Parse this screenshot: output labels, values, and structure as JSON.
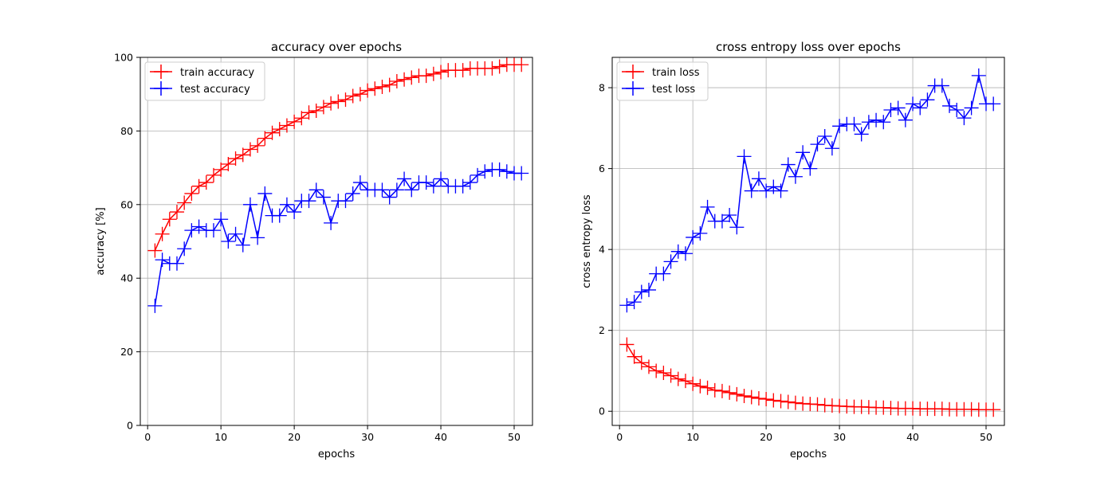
{
  "chart_data": [
    {
      "type": "line",
      "title": "accuracy over epochs",
      "xlabel": "epochs",
      "ylabel": "accuracy [%]",
      "xlim": [
        -1,
        52.5
      ],
      "ylim": [
        0,
        100
      ],
      "xticks": [
        0,
        10,
        20,
        30,
        40,
        50
      ],
      "yticks": [
        0,
        20,
        40,
        60,
        80,
        100
      ],
      "grid": true,
      "legend": "top-left",
      "x": [
        1,
        2,
        3,
        4,
        5,
        6,
        7,
        8,
        9,
        10,
        11,
        12,
        13,
        14,
        15,
        16,
        17,
        18,
        19,
        20,
        21,
        22,
        23,
        24,
        25,
        26,
        27,
        28,
        29,
        30,
        31,
        32,
        33,
        34,
        35,
        36,
        37,
        38,
        39,
        40,
        41,
        42,
        43,
        44,
        45,
        46,
        47,
        48,
        49,
        50,
        51
      ],
      "series": [
        {
          "name": "train accuracy",
          "color": "#ff0000",
          "values": [
            47.5,
            52.0,
            56.0,
            58.0,
            60.5,
            63.0,
            65.0,
            66.0,
            68.0,
            69.5,
            71.0,
            72.5,
            73.5,
            75.0,
            76.0,
            78.0,
            79.5,
            80.5,
            81.5,
            82.5,
            83.5,
            85.0,
            85.5,
            86.5,
            87.5,
            88.0,
            88.5,
            89.5,
            90.0,
            91.0,
            91.5,
            92.0,
            92.5,
            93.5,
            94.0,
            94.5,
            95.0,
            95.0,
            95.5,
            96.0,
            96.5,
            96.5,
            96.5,
            97.0,
            97.0,
            97.0,
            97.0,
            97.5,
            98.0,
            98.0,
            98.0
          ]
        },
        {
          "name": "test accuracy",
          "color": "#0000ff",
          "values": [
            32.5,
            45.0,
            44.0,
            44.0,
            48.0,
            53.0,
            54.0,
            53.0,
            53.0,
            56.0,
            50.0,
            52.0,
            49.0,
            60.0,
            51.0,
            63.0,
            57.0,
            57.0,
            60.0,
            58.0,
            61.0,
            61.0,
            64.0,
            62.0,
            55.0,
            61.0,
            61.0,
            63.0,
            66.0,
            64.0,
            64.0,
            64.0,
            62.0,
            64.0,
            67.0,
            64.0,
            66.0,
            66.0,
            65.0,
            67.0,
            65.0,
            65.0,
            65.0,
            66.0,
            68.0,
            69.0,
            69.5,
            69.5,
            69.0,
            68.5,
            68.5
          ]
        }
      ]
    },
    {
      "type": "line",
      "title": "cross entropy loss over epochs",
      "xlabel": "epochs",
      "ylabel": "cross entropy loss",
      "xlim": [
        -1,
        52.5
      ],
      "ylim": [
        -0.35,
        8.75
      ],
      "xticks": [
        0,
        10,
        20,
        30,
        40,
        50
      ],
      "yticks": [
        0,
        2,
        4,
        6,
        8
      ],
      "grid": true,
      "legend": "top-left",
      "x": [
        1,
        2,
        3,
        4,
        5,
        6,
        7,
        8,
        9,
        10,
        11,
        12,
        13,
        14,
        15,
        16,
        17,
        18,
        19,
        20,
        21,
        22,
        23,
        24,
        25,
        26,
        27,
        28,
        29,
        30,
        31,
        32,
        33,
        34,
        35,
        36,
        37,
        38,
        39,
        40,
        41,
        42,
        43,
        44,
        45,
        46,
        47,
        48,
        49,
        50,
        51
      ],
      "series": [
        {
          "name": "train loss",
          "color": "#ff0000",
          "values": [
            1.65,
            1.35,
            1.2,
            1.1,
            1.0,
            0.95,
            0.88,
            0.8,
            0.75,
            0.68,
            0.62,
            0.58,
            0.52,
            0.5,
            0.46,
            0.42,
            0.38,
            0.35,
            0.32,
            0.3,
            0.27,
            0.25,
            0.23,
            0.21,
            0.19,
            0.18,
            0.17,
            0.15,
            0.14,
            0.13,
            0.12,
            0.11,
            0.11,
            0.1,
            0.09,
            0.09,
            0.08,
            0.07,
            0.07,
            0.07,
            0.06,
            0.06,
            0.06,
            0.06,
            0.05,
            0.05,
            0.05,
            0.05,
            0.04,
            0.04,
            0.04
          ]
        },
        {
          "name": "test loss",
          "color": "#0000ff",
          "values": [
            2.62,
            2.7,
            2.95,
            3.0,
            3.4,
            3.4,
            3.7,
            3.95,
            3.9,
            4.3,
            4.4,
            5.05,
            4.7,
            4.7,
            4.85,
            4.55,
            6.3,
            5.45,
            5.75,
            5.45,
            5.55,
            5.45,
            6.1,
            5.8,
            6.4,
            6.0,
            6.6,
            6.8,
            6.5,
            7.05,
            7.1,
            7.1,
            6.85,
            7.15,
            7.2,
            7.15,
            7.45,
            7.5,
            7.2,
            7.6,
            7.5,
            7.7,
            8.05,
            8.05,
            7.55,
            7.45,
            7.25,
            7.5,
            8.3,
            7.6,
            7.6
          ]
        }
      ]
    }
  ]
}
